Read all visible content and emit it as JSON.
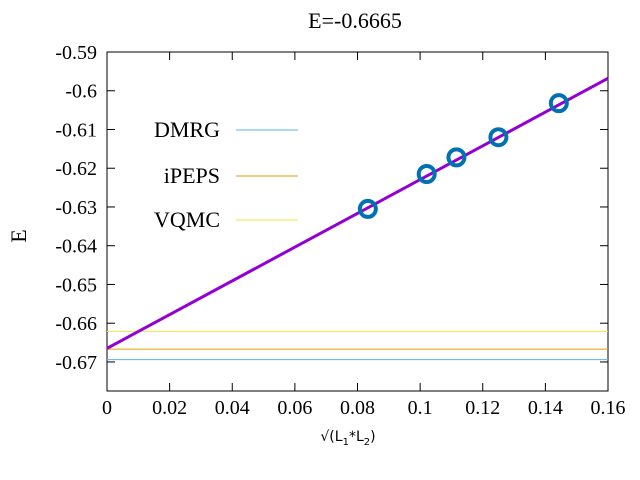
{
  "chart_data": {
    "type": "scatter",
    "title": "E=-0.6665",
    "xlabel_parts": [
      "√(L",
      "1",
      "*L",
      "2",
      ")"
    ],
    "ylabel": "E",
    "xlim": [
      0,
      0.16
    ],
    "ylim": [
      -0.6775,
      -0.59
    ],
    "x_ticks": [
      0,
      0.02,
      0.04,
      0.06,
      0.08,
      0.1,
      0.12,
      0.14,
      0.16
    ],
    "x_tick_labels": [
      "0",
      "0.02",
      "0.04",
      "0.06",
      "0.08",
      "0.1",
      "0.12",
      "0.14",
      "0.16"
    ],
    "y_ticks": [
      -0.59,
      -0.6,
      -0.61,
      -0.62,
      -0.63,
      -0.64,
      -0.65,
      -0.66,
      -0.67
    ],
    "y_tick_labels": [
      "-0.59",
      "-0.6",
      "-0.61",
      "-0.62",
      "-0.63",
      "-0.64",
      "-0.65",
      "-0.66",
      "-0.67"
    ],
    "legend_position": "top-left",
    "points": {
      "color": "#0072b2",
      "x": [
        0.0833,
        0.1021,
        0.1116,
        0.125,
        0.1443
      ],
      "y": [
        -0.6305,
        -0.6215,
        -0.6172,
        -0.612,
        -0.6032
      ]
    },
    "fit_line": {
      "color": "#9400d3",
      "x": [
        0,
        0.16
      ],
      "y": [
        -0.6665,
        -0.5968
      ]
    },
    "reference_lines": [
      {
        "name": "DMRG",
        "y": -0.6694,
        "color": "#56b4e9"
      },
      {
        "name": "iPEPS",
        "y": -0.6667,
        "color": "#e69f00"
      },
      {
        "name": "VQMC",
        "y": -0.6621,
        "color": "#f0e442"
      }
    ]
  }
}
